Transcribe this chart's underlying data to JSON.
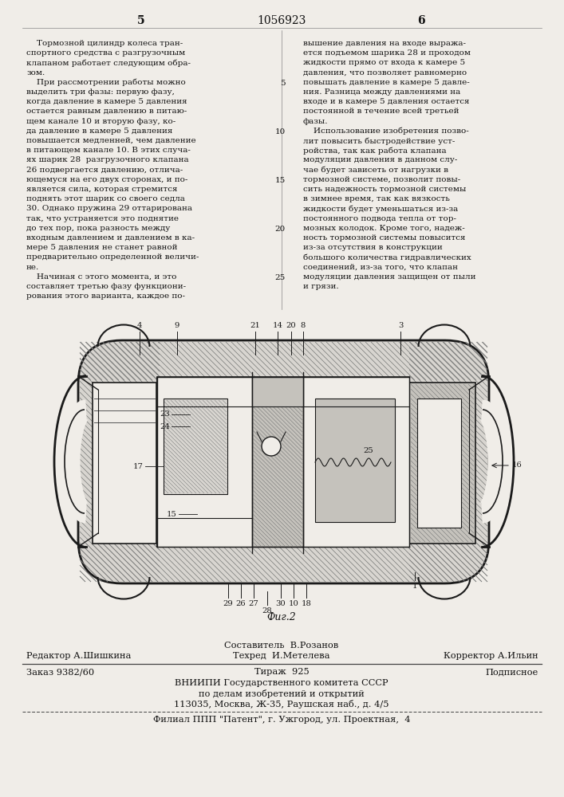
{
  "page_number_left": "5",
  "page_number_center": "1056923",
  "page_number_right": "6",
  "bg_color": "#f0ede8",
  "text_color": "#111111",
  "col1_lines": [
    "    Тормозной цилиндр колеса тран-",
    "спортного средства с разгрузочным",
    "клапаном работает следующим обра-",
    "зом.",
    "    При рассмотрении работы можно",
    "выделить три фазы: первую фазу,",
    "когда давление в камере 5 давления",
    "остается равным давлению в питаю-",
    "щем канале 10 и вторую фазу, ко-",
    "да давление в камере 5 давления",
    "повышается медленней, чем давление",
    "в питающем канале 10. В этих случа-",
    "ях шарик 28  разгрузочного клапана",
    "26 подвергается давлению, отлича-",
    "ющемуся на его двух сторонах, и по-",
    "является сила, которая стремится",
    "поднять этот шарик со своего седла",
    "30. Однако пружина 29 оттарирована",
    "так, что устраняется это поднятие",
    "до тех пор, пока разность между",
    "входным давлением и давлением в ка-",
    "мере 5 давления не станет равной",
    "предварительно определенной величи-",
    "не.",
    "    Начиная с этого момента, и это",
    "составляет третью фазу функциони-",
    "рования этого варианта, каждое по-"
  ],
  "col2_lines": [
    "вышение давления на входе выража-",
    "ется подъемом шарика 28 и проходом",
    "жидкости прямо от входа к камере 5",
    "давления, что позволяет равномерно",
    "повышать давление в камере 5 давле-",
    "ния. Разница между давлениями на",
    "входе и в камере 5 давления остается",
    "постоянной в течение всей третьей",
    "фазы.",
    "    Использование изобретения позво-",
    "лит повысить быстродействие уст-",
    "ройства, так как работа клапана",
    "модуляции давления в данном слу-",
    "чае будет зависеть от нагрузки в",
    "тормозной системе, позволит повы-",
    "сить надежность тормозной системы",
    "в зимнее время, так как вязкость",
    "жидкости будет уменьшаться из-за",
    "постоянного подвода тепла от тор-",
    "мозных колодок. Кроме того, надеж-",
    "ность тормозной системы повысится",
    "из-за отсутствия в конструкции",
    "большого количества гидравлических",
    "соединений, из-за того, что клапан",
    "модуляции давления защищен от пыли",
    "и грязи."
  ],
  "col2_linenums": {
    "4": "5",
    "9": "10",
    "14": "15",
    "19": "20",
    "24": "25"
  },
  "fig_caption": "Фиг.2",
  "footer_sestavitel": "Составитель  В.Розанов",
  "footer_editor": "Редактор А.Шишкина",
  "footer_tehred": "Техред  И.Метелева",
  "footer_korrektor": "Корректор А.Ильин",
  "footer_zakaz": "Заказ 9382/60",
  "footer_tirazh": "Тираж  925",
  "footer_podpisnoe": "Подписное",
  "footer_vniip": "ВНИИПИ Государственного комитета СССР",
  "footer_dela": "по делам изобретений и открытий",
  "footer_addr": "113035, Москва, Ж-35, Раушская наб., д. 4/5",
  "footer_filial": "Филиал ППП \"Патент\", г. Ужгород, ул. Проектная,  4"
}
